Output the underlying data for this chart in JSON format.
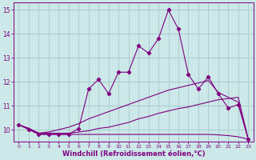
{
  "x": [
    0,
    1,
    2,
    3,
    4,
    5,
    6,
    7,
    8,
    9,
    10,
    11,
    12,
    13,
    14,
    15,
    16,
    17,
    18,
    19,
    20,
    21,
    22,
    23
  ],
  "y_main": [
    10.2,
    10.0,
    9.8,
    9.8,
    9.8,
    9.8,
    10.05,
    11.7,
    12.1,
    11.5,
    12.4,
    12.4,
    13.5,
    13.2,
    13.8,
    15.0,
    14.2,
    12.3,
    11.7,
    12.2,
    11.5,
    10.9,
    11.05,
    9.6
  ],
  "y_line1": [
    10.2,
    10.05,
    9.85,
    9.9,
    10.0,
    10.1,
    10.25,
    10.45,
    10.6,
    10.75,
    10.9,
    11.05,
    11.2,
    11.35,
    11.5,
    11.65,
    11.75,
    11.85,
    11.95,
    12.05,
    11.55,
    11.35,
    11.15,
    9.6
  ],
  "y_line2": [
    10.2,
    10.05,
    9.85,
    9.85,
    9.85,
    9.85,
    9.9,
    9.95,
    10.05,
    10.1,
    10.2,
    10.3,
    10.45,
    10.55,
    10.68,
    10.78,
    10.88,
    10.95,
    11.05,
    11.15,
    11.25,
    11.3,
    11.35,
    9.6
  ],
  "y_line3": [
    10.2,
    10.05,
    9.82,
    9.8,
    9.8,
    9.8,
    9.8,
    9.8,
    9.8,
    9.8,
    9.8,
    9.8,
    9.8,
    9.8,
    9.8,
    9.8,
    9.8,
    9.8,
    9.8,
    9.8,
    9.78,
    9.75,
    9.7,
    9.6
  ],
  "color": "#800080",
  "bg_color": "#cce8e8",
  "grid_color": "#aacece",
  "xlabel": "Windchill (Refroidissement éolien,°C)",
  "ylim": [
    9.5,
    15.3
  ],
  "xlim": [
    -0.5,
    23.5
  ],
  "yticks": [
    10,
    11,
    12,
    13,
    14,
    15
  ],
  "xticks": [
    0,
    1,
    2,
    3,
    4,
    5,
    6,
    7,
    8,
    9,
    10,
    11,
    12,
    13,
    14,
    15,
    16,
    17,
    18,
    19,
    20,
    21,
    22,
    23
  ],
  "tick_fontsize": 5.5,
  "xlabel_fontsize": 6.0
}
